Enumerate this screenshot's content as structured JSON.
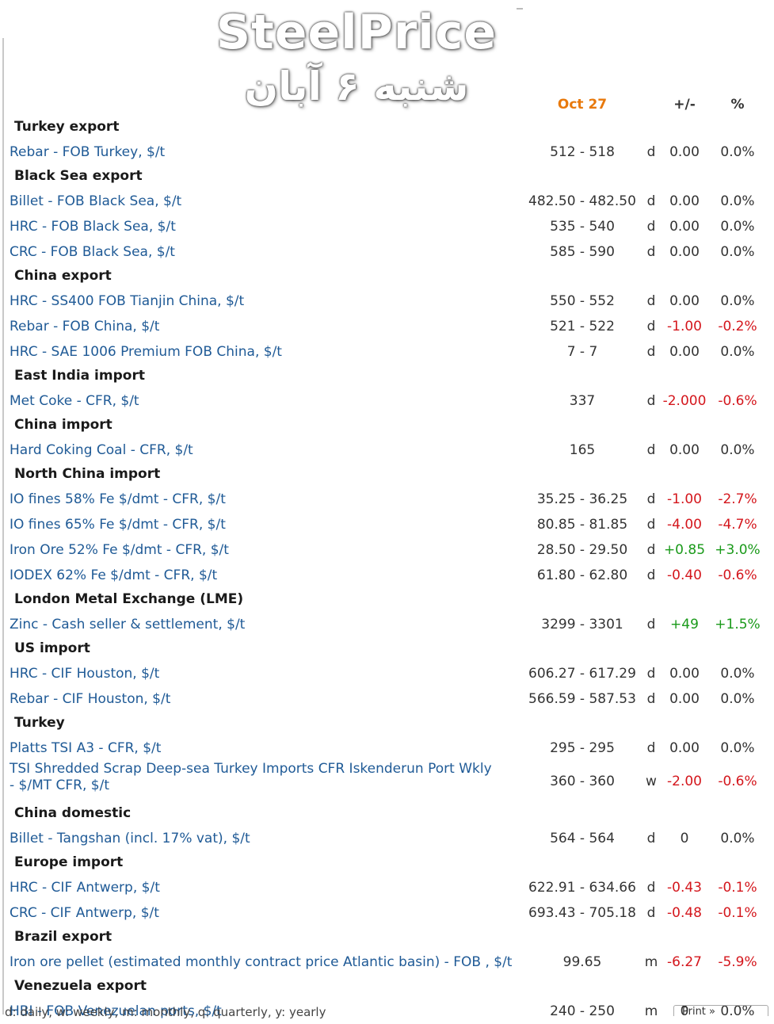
{
  "watermark": {
    "title": "SteelPrice",
    "date": "شنبه ۶ آبان"
  },
  "header": {
    "date": "Oct 27",
    "change": "+/-",
    "percent": "%"
  },
  "sections": [
    {
      "title": "Turkey export",
      "items": [
        {
          "name": "Rebar - FOB Turkey, $/t",
          "price": "512 - 518",
          "freq": "d",
          "change": "0.00",
          "percent": "0.0%",
          "dir": "neutral"
        }
      ]
    },
    {
      "title": "Black Sea export",
      "items": [
        {
          "name": "Billet - FOB Black Sea, $/t",
          "price": "482.50 - 482.50",
          "freq": "d",
          "change": "0.00",
          "percent": "0.0%",
          "dir": "neutral"
        },
        {
          "name": "HRC - FOB Black Sea, $/t",
          "price": "535 - 540",
          "freq": "d",
          "change": "0.00",
          "percent": "0.0%",
          "dir": "neutral"
        },
        {
          "name": "CRC - FOB Black Sea, $/t",
          "price": "585 - 590",
          "freq": "d",
          "change": "0.00",
          "percent": "0.0%",
          "dir": "neutral"
        }
      ]
    },
    {
      "title": "China export",
      "items": [
        {
          "name": "HRC - SS400 FOB Tianjin China, $/t",
          "price": "550 - 552",
          "freq": "d",
          "change": "0.00",
          "percent": "0.0%",
          "dir": "neutral"
        },
        {
          "name": "Rebar - FOB China, $/t",
          "price": "521 - 522",
          "freq": "d",
          "change": "-1.00",
          "percent": "-0.2%",
          "dir": "neg"
        },
        {
          "name": "HRC - SAE 1006 Premium FOB China, $/t",
          "price": "7 - 7",
          "freq": "d",
          "change": "0.00",
          "percent": "0.0%",
          "dir": "neutral"
        }
      ]
    },
    {
      "title": "East India import",
      "items": [
        {
          "name": "Met Coke - CFR, $/t",
          "price": "337",
          "freq": "d",
          "change": "-2.000",
          "percent": "-0.6%",
          "dir": "neg"
        }
      ]
    },
    {
      "title": "China import",
      "items": [
        {
          "name": "Hard Coking Coal - CFR, $/t",
          "price": "165",
          "freq": "d",
          "change": "0.00",
          "percent": "0.0%",
          "dir": "neutral"
        }
      ]
    },
    {
      "title": "North China import",
      "items": [
        {
          "name": "IO fines 58% Fe $/dmt - CFR, $/t",
          "price": "35.25 - 36.25",
          "freq": "d",
          "change": "-1.00",
          "percent": "-2.7%",
          "dir": "neg"
        },
        {
          "name": "IO fines 65% Fe $/dmt - CFR, $/t",
          "price": "80.85 - 81.85",
          "freq": "d",
          "change": "-4.00",
          "percent": "-4.7%",
          "dir": "neg"
        },
        {
          "name": "Iron Ore 52% Fe $/dmt - CFR, $/t",
          "price": "28.50 - 29.50",
          "freq": "d",
          "change": "+0.85",
          "percent": "+3.0%",
          "dir": "pos"
        },
        {
          "name": "IODEX 62% Fe $/dmt - CFR, $/t",
          "price": "61.80 - 62.80",
          "freq": "d",
          "change": "-0.40",
          "percent": "-0.6%",
          "dir": "neg"
        }
      ]
    },
    {
      "title": "London Metal Exchange (LME)",
      "items": [
        {
          "name": "Zinc - Cash seller & settlement, $/t",
          "price": "3299 - 3301",
          "freq": "d",
          "change": "+49",
          "percent": "+1.5%",
          "dir": "pos"
        }
      ]
    },
    {
      "title": "US import",
      "items": [
        {
          "name": "HRC - CIF Houston, $/t",
          "price": "606.27 - 617.29",
          "freq": "d",
          "change": "0.00",
          "percent": "0.0%",
          "dir": "neutral"
        },
        {
          "name": "Rebar - CIF Houston, $/t",
          "price": "566.59 - 587.53",
          "freq": "d",
          "change": "0.00",
          "percent": "0.0%",
          "dir": "neutral"
        }
      ]
    },
    {
      "title": "Turkey",
      "items": [
        {
          "name": "Platts TSI A3 - CFR, $/t",
          "price": "295 - 295",
          "freq": "d",
          "change": "0.00",
          "percent": "0.0%",
          "dir": "neutral"
        },
        {
          "name": "TSI Shredded Scrap Deep-sea Turkey Imports CFR Iskenderun Port Wkly - $/MT CFR, $/t",
          "price": "360 - 360",
          "freq": "w",
          "change": "-2.00",
          "percent": "-0.6%",
          "dir": "neg",
          "tall": true
        }
      ]
    },
    {
      "title": "China domestic",
      "items": [
        {
          "name": "Billet - Tangshan (incl. 17% vat), $/t",
          "price": "564 - 564",
          "freq": "d",
          "change": "0",
          "percent": "0.0%",
          "dir": "neutral"
        }
      ]
    },
    {
      "title": "Europe import",
      "items": [
        {
          "name": "HRC - CIF Antwerp, $/t",
          "price": "622.91 - 634.66",
          "freq": "d",
          "change": "-0.43",
          "percent": "-0.1%",
          "dir": "neg"
        },
        {
          "name": "CRC - CIF Antwerp, $/t",
          "price": "693.43 - 705.18",
          "freq": "d",
          "change": "-0.48",
          "percent": "-0.1%",
          "dir": "neg"
        }
      ]
    },
    {
      "title": "Brazil export",
      "items": [
        {
          "name": "Iron ore pellet (estimated monthly contract price Atlantic basin) - FOB , $/t",
          "price": "99.65",
          "freq": "m",
          "change": "-6.27",
          "percent": "-5.9%",
          "dir": "neg"
        }
      ]
    },
    {
      "title": "Venezuela export",
      "items": [
        {
          "name": "HBI - FOB Venezuelan ports, $/t",
          "price": "240 - 250",
          "freq": "m",
          "change": "0",
          "percent": "0.0%",
          "dir": "neutral"
        }
      ]
    }
  ],
  "footer": {
    "legend": "d: daily, w: weekly, m: monthly, q: quarterly, y: yearly",
    "button": "Print »"
  },
  "colors": {
    "link": "#1f5a96",
    "date_header": "#e8790c",
    "negative": "#d4161c",
    "positive": "#1a9a1a"
  }
}
